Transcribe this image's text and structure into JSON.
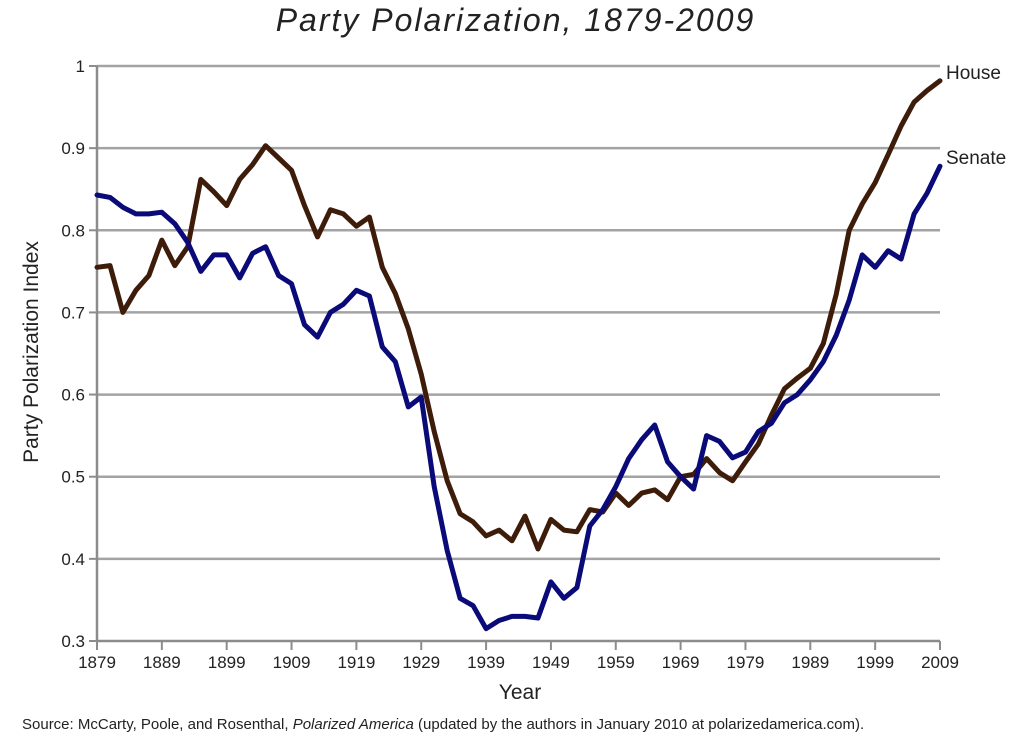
{
  "chart_data": {
    "type": "line",
    "title": "Party Polarization, 1879-2009",
    "xlabel": "Year",
    "ylabel": "Party Polarization Index",
    "xlim": [
      1879,
      2009
    ],
    "ylim": [
      0.3,
      1.0
    ],
    "x_ticks": [
      "1879",
      "1889",
      "1899",
      "1909",
      "1919",
      "1929",
      "1939",
      "1949",
      "1959",
      "1969",
      "1979",
      "1989",
      "1999",
      "2009"
    ],
    "y_ticks": [
      "0.3",
      "0.4",
      "0.5",
      "0.6",
      "0.7",
      "0.8",
      "0.9",
      "1"
    ],
    "grid": "horizontal",
    "legend": "line-end labels",
    "series": [
      {
        "name": "House",
        "color": "#3e1c0a",
        "points": [
          [
            1879,
            0.755
          ],
          [
            1881,
            0.757
          ],
          [
            1883,
            0.7
          ],
          [
            1885,
            0.727
          ],
          [
            1887,
            0.745
          ],
          [
            1889,
            0.788
          ],
          [
            1891,
            0.757
          ],
          [
            1893,
            0.78
          ],
          [
            1895,
            0.862
          ],
          [
            1897,
            0.847
          ],
          [
            1899,
            0.83
          ],
          [
            1901,
            0.862
          ],
          [
            1903,
            0.88
          ],
          [
            1905,
            0.903
          ],
          [
            1907,
            0.888
          ],
          [
            1909,
            0.873
          ],
          [
            1911,
            0.83
          ],
          [
            1913,
            0.792
          ],
          [
            1915,
            0.825
          ],
          [
            1917,
            0.82
          ],
          [
            1919,
            0.805
          ],
          [
            1921,
            0.816
          ],
          [
            1923,
            0.755
          ],
          [
            1925,
            0.723
          ],
          [
            1927,
            0.68
          ],
          [
            1929,
            0.625
          ],
          [
            1931,
            0.555
          ],
          [
            1933,
            0.495
          ],
          [
            1935,
            0.455
          ],
          [
            1937,
            0.445
          ],
          [
            1939,
            0.428
          ],
          [
            1941,
            0.435
          ],
          [
            1943,
            0.422
          ],
          [
            1945,
            0.452
          ],
          [
            1947,
            0.412
          ],
          [
            1949,
            0.448
          ],
          [
            1951,
            0.435
          ],
          [
            1953,
            0.433
          ],
          [
            1955,
            0.46
          ],
          [
            1957,
            0.457
          ],
          [
            1959,
            0.48
          ],
          [
            1961,
            0.465
          ],
          [
            1963,
            0.48
          ],
          [
            1965,
            0.484
          ],
          [
            1967,
            0.472
          ],
          [
            1969,
            0.5
          ],
          [
            1971,
            0.503
          ],
          [
            1973,
            0.522
          ],
          [
            1975,
            0.505
          ],
          [
            1977,
            0.495
          ],
          [
            1979,
            0.518
          ],
          [
            1981,
            0.54
          ],
          [
            1983,
            0.575
          ],
          [
            1985,
            0.607
          ],
          [
            1987,
            0.62
          ],
          [
            1989,
            0.632
          ],
          [
            1991,
            0.662
          ],
          [
            1993,
            0.722
          ],
          [
            1995,
            0.8
          ],
          [
            1997,
            0.832
          ],
          [
            1999,
            0.858
          ],
          [
            2001,
            0.892
          ],
          [
            2003,
            0.927
          ],
          [
            2005,
            0.956
          ],
          [
            2007,
            0.97
          ],
          [
            2009,
            0.982
          ]
        ]
      },
      {
        "name": "Senate",
        "color": "#0a0a78",
        "points": [
          [
            1879,
            0.843
          ],
          [
            1881,
            0.84
          ],
          [
            1883,
            0.828
          ],
          [
            1885,
            0.82
          ],
          [
            1887,
            0.82
          ],
          [
            1889,
            0.822
          ],
          [
            1891,
            0.808
          ],
          [
            1893,
            0.785
          ],
          [
            1895,
            0.75
          ],
          [
            1897,
            0.77
          ],
          [
            1899,
            0.77
          ],
          [
            1901,
            0.742
          ],
          [
            1903,
            0.772
          ],
          [
            1905,
            0.78
          ],
          [
            1907,
            0.745
          ],
          [
            1909,
            0.735
          ],
          [
            1911,
            0.685
          ],
          [
            1913,
            0.67
          ],
          [
            1915,
            0.7
          ],
          [
            1917,
            0.71
          ],
          [
            1919,
            0.727
          ],
          [
            1921,
            0.72
          ],
          [
            1923,
            0.658
          ],
          [
            1925,
            0.64
          ],
          [
            1927,
            0.585
          ],
          [
            1929,
            0.597
          ],
          [
            1931,
            0.488
          ],
          [
            1933,
            0.41
          ],
          [
            1935,
            0.352
          ],
          [
            1937,
            0.343
          ],
          [
            1939,
            0.315
          ],
          [
            1941,
            0.325
          ],
          [
            1943,
            0.33
          ],
          [
            1945,
            0.33
          ],
          [
            1947,
            0.328
          ],
          [
            1949,
            0.372
          ],
          [
            1951,
            0.352
          ],
          [
            1953,
            0.365
          ],
          [
            1955,
            0.44
          ],
          [
            1957,
            0.46
          ],
          [
            1959,
            0.488
          ],
          [
            1961,
            0.522
          ],
          [
            1963,
            0.545
          ],
          [
            1965,
            0.563
          ],
          [
            1967,
            0.518
          ],
          [
            1969,
            0.5
          ],
          [
            1971,
            0.485
          ],
          [
            1973,
            0.55
          ],
          [
            1975,
            0.543
          ],
          [
            1977,
            0.523
          ],
          [
            1979,
            0.53
          ],
          [
            1981,
            0.555
          ],
          [
            1983,
            0.565
          ],
          [
            1985,
            0.59
          ],
          [
            1987,
            0.6
          ],
          [
            1989,
            0.618
          ],
          [
            1991,
            0.64
          ],
          [
            1993,
            0.672
          ],
          [
            1995,
            0.715
          ],
          [
            1997,
            0.77
          ],
          [
            1999,
            0.755
          ],
          [
            2001,
            0.775
          ],
          [
            2003,
            0.765
          ],
          [
            2005,
            0.82
          ],
          [
            2007,
            0.845
          ],
          [
            2009,
            0.878
          ]
        ]
      }
    ]
  },
  "source": {
    "prefix": "Source: McCarty, Poole, and Rosenthal, ",
    "book": "Polarized America",
    "suffix": " (updated by the authors in January 2010 at polarizedamerica.com)."
  }
}
